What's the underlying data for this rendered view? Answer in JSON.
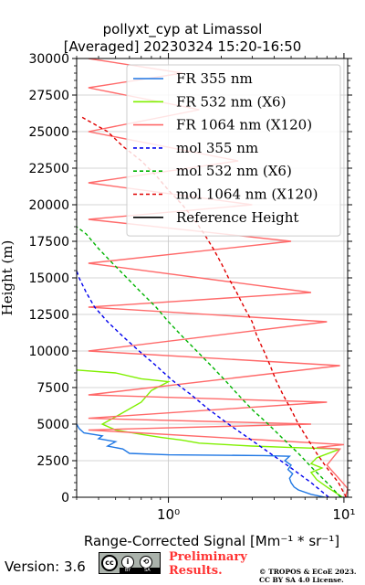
{
  "title": {
    "line1": "pollyxt_cyp at Limassol",
    "line2": "[Averaged] 20230324 15:20-16:50"
  },
  "footer": {
    "version": "Version: 3.6",
    "preliminary": [
      "Preliminary",
      "Results."
    ],
    "copyright": [
      "© TROPOS & ECoE 2023.",
      "CC BY SA 4.0 License."
    ],
    "badge": {
      "cc": "cc",
      "by": "BY",
      "sa": "SA"
    }
  },
  "chart_data": {
    "type": "line",
    "xlabel": "Range-Corrected Signal [Mm⁻¹ * sr⁻¹]",
    "ylabel": "Height (m)",
    "xscale": "log",
    "xlim": [
      0.3,
      10.5
    ],
    "ylim": [
      0,
      30000
    ],
    "x_ticks": [
      "10⁰",
      "10¹"
    ],
    "y_ticks": [
      0,
      2500,
      5000,
      7500,
      10000,
      12500,
      15000,
      17500,
      20000,
      22500,
      25000,
      27500,
      30000
    ],
    "y_tick_labels": [
      "0",
      "2500",
      "5000",
      "7500",
      "10000",
      "12500",
      "15000",
      "17500",
      "20000",
      "22500",
      "25000",
      "27500",
      "30000"
    ],
    "grid": true,
    "legend_position": "top-right",
    "series": [
      {
        "name": "FR 355 nm",
        "color": "#1f77e4",
        "style": "solid",
        "points": [
          [
            7.8,
            0
          ],
          [
            6.5,
            200
          ],
          [
            5.5,
            500
          ],
          [
            5.2,
            700
          ],
          [
            5.0,
            1000
          ],
          [
            4.9,
            1300
          ],
          [
            5.1,
            1600
          ],
          [
            4.8,
            1900
          ],
          [
            5.0,
            2200
          ],
          [
            4.6,
            2500
          ],
          [
            4.9,
            2800
          ],
          [
            3.5,
            2850
          ],
          [
            1.0,
            2900
          ],
          [
            0.6,
            3000
          ],
          [
            0.55,
            3300
          ],
          [
            0.45,
            3500
          ],
          [
            0.5,
            3800
          ],
          [
            0.4,
            4000
          ],
          [
            0.42,
            4200
          ],
          [
            0.33,
            4400
          ],
          [
            0.31,
            4700
          ],
          [
            0.3,
            5000
          ]
        ]
      },
      {
        "name": "FR 532 nm (X6)",
        "color": "#80f000",
        "style": "solid",
        "points": [
          [
            9.8,
            0
          ],
          [
            9.0,
            300
          ],
          [
            8.0,
            700
          ],
          [
            7.0,
            1200
          ],
          [
            6.5,
            1700
          ],
          [
            7.5,
            2000
          ],
          [
            6.5,
            2300
          ],
          [
            7.0,
            2700
          ],
          [
            9.5,
            3300
          ],
          [
            5.0,
            3400
          ],
          [
            3.0,
            3500
          ],
          [
            1.5,
            3700
          ],
          [
            1.2,
            3900
          ],
          [
            0.9,
            4100
          ],
          [
            0.7,
            4300
          ],
          [
            0.5,
            4600
          ],
          [
            0.42,
            5000
          ],
          [
            0.5,
            5500
          ],
          [
            0.7,
            6500
          ],
          [
            0.8,
            7300
          ],
          [
            1.0,
            7900
          ],
          [
            0.7,
            8100
          ],
          [
            0.5,
            8500
          ],
          [
            0.3,
            8700
          ]
        ]
      },
      {
        "name": "FR 1064 nm (X120)",
        "color": "#ff6a6a",
        "style": "solid",
        "points": [
          [
            10.2,
            0
          ],
          [
            10.5,
            600
          ],
          [
            9.5,
            1200
          ],
          [
            8.0,
            2200
          ],
          [
            9.5,
            3300
          ],
          [
            7.0,
            3400
          ],
          [
            10.0,
            3600
          ],
          [
            0.35,
            4600
          ],
          [
            6.5,
            5000
          ],
          [
            0.35,
            5400
          ],
          [
            8.0,
            6500
          ],
          [
            0.35,
            7000
          ],
          [
            9.5,
            9000
          ],
          [
            0.35,
            10000
          ],
          [
            8.0,
            12000
          ],
          [
            0.35,
            13000
          ],
          [
            6.5,
            14000
          ],
          [
            0.35,
            16000
          ],
          [
            5.0,
            17500
          ],
          [
            0.35,
            19000
          ],
          [
            3.0,
            20000
          ],
          [
            0.35,
            21500
          ],
          [
            2.5,
            23000
          ],
          [
            0.35,
            25000
          ],
          [
            1.5,
            26500
          ],
          [
            0.35,
            28000
          ],
          [
            1.2,
            29000
          ],
          [
            0.35,
            30000
          ]
        ]
      },
      {
        "name": "mol 355 nm",
        "color": "#0000ee",
        "style": "dashed",
        "points": [
          [
            8.2,
            0
          ],
          [
            6.5,
            1000
          ],
          [
            5.0,
            2000
          ],
          [
            3.8,
            3000
          ],
          [
            2.9,
            4000
          ],
          [
            2.2,
            5000
          ],
          [
            1.7,
            6000
          ],
          [
            1.35,
            7000
          ],
          [
            1.05,
            8000
          ],
          [
            0.85,
            9000
          ],
          [
            0.68,
            10000
          ],
          [
            0.55,
            11000
          ],
          [
            0.45,
            12000
          ],
          [
            0.38,
            13000
          ],
          [
            0.34,
            14000
          ],
          [
            0.31,
            15000
          ],
          [
            0.29,
            16000
          ],
          [
            0.27,
            17500
          ]
        ]
      },
      {
        "name": "mol 532 nm (X6)",
        "color": "#00b400",
        "style": "dashed",
        "points": [
          [
            9.6,
            0
          ],
          [
            8.0,
            1000
          ],
          [
            6.6,
            2000
          ],
          [
            5.5,
            3000
          ],
          [
            4.5,
            4000
          ],
          [
            3.7,
            5000
          ],
          [
            3.0,
            6000
          ],
          [
            2.5,
            7000
          ],
          [
            2.1,
            8000
          ],
          [
            1.75,
            9000
          ],
          [
            1.45,
            10000
          ],
          [
            1.2,
            11000
          ],
          [
            1.0,
            12000
          ],
          [
            0.85,
            13000
          ],
          [
            0.7,
            14000
          ],
          [
            0.58,
            15000
          ],
          [
            0.48,
            16000
          ],
          [
            0.4,
            17000
          ],
          [
            0.34,
            18000
          ],
          [
            0.3,
            18500
          ],
          [
            0.27,
            19500
          ]
        ]
      },
      {
        "name": "mol 1064 nm (X120)",
        "color": "#e00000",
        "style": "dashed",
        "points": [
          [
            10.3,
            0
          ],
          [
            9.3,
            1000
          ],
          [
            8.0,
            2000
          ],
          [
            7.0,
            3000
          ],
          [
            6.2,
            4000
          ],
          [
            5.5,
            5000
          ],
          [
            5.0,
            6000
          ],
          [
            4.5,
            7000
          ],
          [
            4.1,
            8000
          ],
          [
            3.8,
            9000
          ],
          [
            3.5,
            10000
          ],
          [
            3.2,
            11000
          ],
          [
            3.0,
            12000
          ],
          [
            2.7,
            13000
          ],
          [
            2.45,
            14000
          ],
          [
            2.2,
            15000
          ],
          [
            2.0,
            16000
          ],
          [
            1.8,
            17000
          ],
          [
            1.6,
            18000
          ],
          [
            1.4,
            19000
          ],
          [
            1.2,
            20000
          ],
          [
            1.0,
            21000
          ],
          [
            0.85,
            22000
          ],
          [
            0.7,
            23000
          ],
          [
            0.55,
            24000
          ],
          [
            0.45,
            25000
          ],
          [
            0.38,
            25500
          ],
          [
            0.32,
            26000
          ]
        ]
      },
      {
        "name": "Reference Height",
        "color": "#000000",
        "style": "solid",
        "points": []
      }
    ]
  }
}
